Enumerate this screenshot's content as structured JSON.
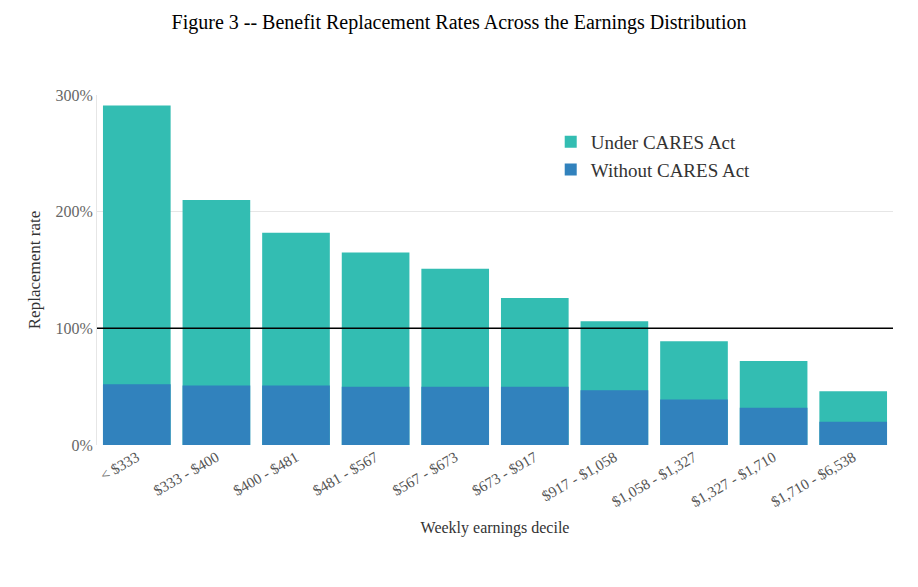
{
  "chart_data": {
    "type": "bar",
    "title": "Figure 3 -- Benefit Replacement Rates Across the Earnings Distribution",
    "x_label": "Weekly earnings decile",
    "y_label": "Replacement rate",
    "categories": [
      "< $333",
      "$333 - $400",
      "$400 - $481",
      "$481 - $567",
      "$567 - $673",
      "$673 - $917",
      "$917 - $1,058",
      "$1,058 - $1,327",
      "$1,327 - $1,710",
      "$1,710 - $6,538"
    ],
    "series": [
      {
        "name": "Under CARES Act",
        "color": "#33bdb2",
        "values": [
          291,
          210,
          182,
          165,
          151,
          126,
          106,
          89,
          72,
          46
        ]
      },
      {
        "name": "Without CARES Act",
        "color": "#3182bd",
        "values": [
          52,
          51,
          51,
          50,
          50,
          50,
          47,
          39,
          32,
          20
        ]
      }
    ],
    "stacked": false,
    "ylim": [
      0,
      300
    ],
    "yticks": [
      {
        "value": 0,
        "label": "0%"
      },
      {
        "value": 100,
        "label": "100%"
      },
      {
        "value": 200,
        "label": "200%"
      },
      {
        "value": 300,
        "label": "300%"
      }
    ],
    "reference_line": 100,
    "grid": true,
    "legend": "top right"
  }
}
